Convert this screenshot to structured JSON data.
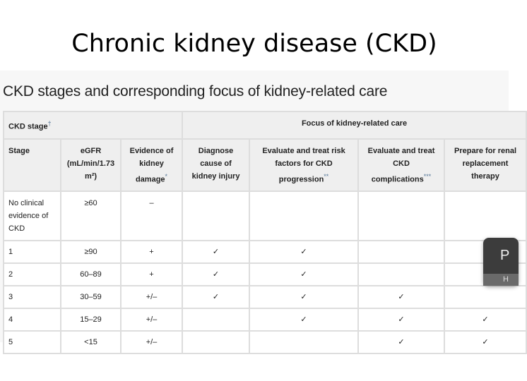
{
  "slide_title": "Chronic kidney disease (CKD)",
  "table_title": "CKD stages and corresponding focus of kidney-related care",
  "header_group": {
    "ckd_stage": "CKD stage",
    "ckd_stage_mark": "†",
    "focus": "Focus of kidney-related care"
  },
  "columns": [
    {
      "label": "Stage",
      "mark": ""
    },
    {
      "label": "eGFR (mL/min/1.73 m²)",
      "mark": ""
    },
    {
      "label": "Evidence of kidney damage",
      "mark": "*"
    },
    {
      "label": "Diagnose cause of kidney injury",
      "mark": ""
    },
    {
      "label": "Evaluate and treat risk factors for CKD progression",
      "mark": "**"
    },
    {
      "label": "Evaluate and treat CKD complications",
      "mark": "***"
    },
    {
      "label": "Prepare for renal replacement therapy",
      "mark": ""
    }
  ],
  "rows": [
    [
      "No clinical evidence of CKD",
      "≥60",
      "–",
      "",
      "",
      "",
      ""
    ],
    [
      "1",
      "≥90",
      "+",
      "✓",
      "✓",
      "",
      ""
    ],
    [
      "2",
      "60–89",
      "+",
      "✓",
      "✓",
      "",
      ""
    ],
    [
      "3",
      "30–59",
      "+/–",
      "✓",
      "✓",
      "✓",
      ""
    ],
    [
      "4",
      "15–29",
      "+/–",
      "",
      "✓",
      "✓",
      "✓"
    ],
    [
      "5",
      "<15",
      "+/–",
      "",
      "",
      "✓",
      "✓"
    ]
  ],
  "popup": {
    "letter": "P",
    "footer": "H"
  }
}
